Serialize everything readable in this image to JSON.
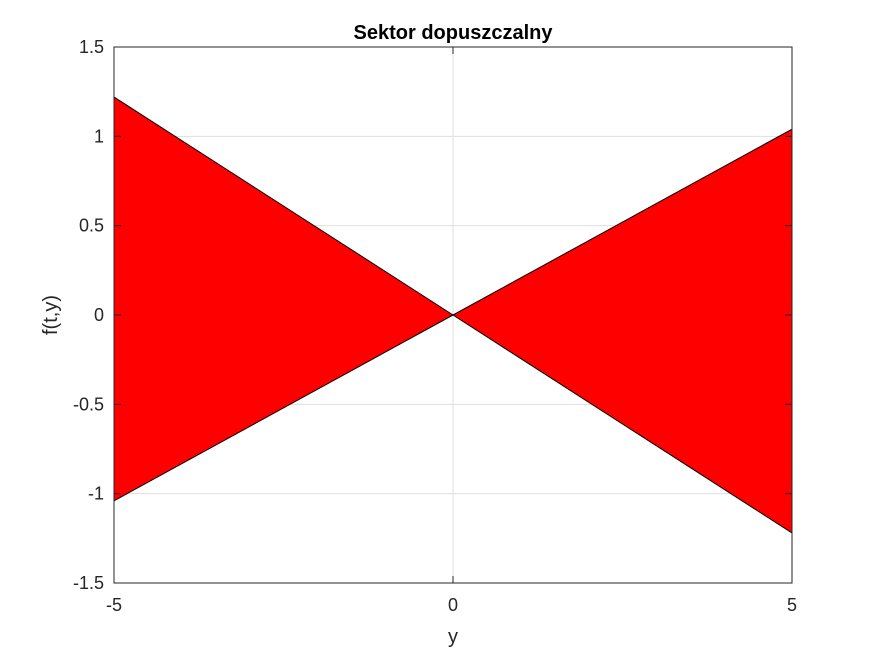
{
  "chart_data": {
    "type": "area",
    "title": "Sektor dopuszczalny",
    "xlabel": "y",
    "ylabel": "f(t,y)",
    "xlim": [
      -5,
      5
    ],
    "ylim": [
      -1.5,
      1.5
    ],
    "xticks": [
      "-5",
      "0",
      "5"
    ],
    "yticks": [
      "-1.5",
      "-1",
      "-0.5",
      "0",
      "0.5",
      "1",
      "1.5"
    ],
    "grid": true,
    "fill_color": "#ff0000",
    "edge_color": "#000000",
    "series": [
      {
        "x": [
          -5,
          0,
          5
        ],
        "y": [
          1.22,
          0,
          -1.22
        ]
      },
      {
        "x": [
          -5,
          0,
          5
        ],
        "y": [
          -1.04,
          0,
          1.04
        ]
      }
    ],
    "regions": [
      {
        "x": [
          -5,
          0,
          -5
        ],
        "y": [
          1.22,
          0,
          -1.04
        ]
      },
      {
        "x": [
          0,
          5,
          5
        ],
        "y": [
          0,
          1.04,
          -1.22
        ]
      }
    ]
  }
}
